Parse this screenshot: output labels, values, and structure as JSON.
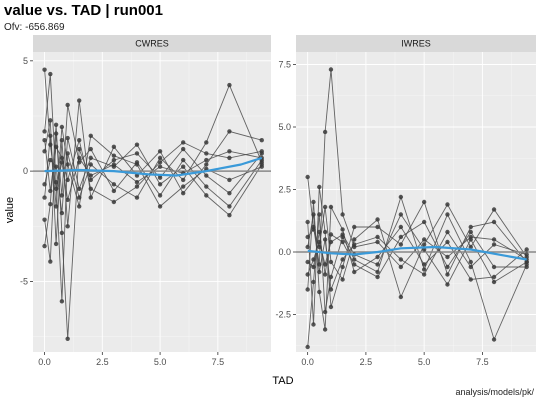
{
  "title": "value vs. TAD | run001",
  "subtitle": "Ofv: -656.869",
  "xlabel": "TAD",
  "ylabel": "value",
  "caption": "analysis/models/pk/",
  "colors": {
    "panel_bg": "#ebebeb",
    "strip_bg": "#d9d9d9",
    "grid_major": "#ffffff",
    "point": "#3a3a3a",
    "line": "#4a4a4a",
    "smooth": "#3a9ad9",
    "reference": "#888888"
  },
  "chart_data": [
    {
      "type": "line",
      "panel": "CWRES",
      "strip_label": "CWRES",
      "xlim": [
        -0.5,
        9.8
      ],
      "ylim": [
        -8.2,
        5.4
      ],
      "xticks": [
        0.0,
        2.5,
        5.0,
        7.5
      ],
      "xtick_labels": [
        "0.0",
        "2.5",
        "5.0",
        "7.5"
      ],
      "yticks": [
        -5,
        0,
        5
      ],
      "ytick_labels": [
        "-5",
        "0",
        "5"
      ],
      "reference_y": 0,
      "grid": true,
      "x": [
        0,
        0.25,
        0.5,
        0.75,
        1,
        1.5,
        2,
        3,
        4,
        5,
        6,
        7,
        8,
        9.4
      ],
      "series": [
        {
          "values": [
            4.6,
            1.2,
            -0.8,
            0.4,
            -1.3,
            0.6,
            -0.2,
            0.3,
            -0.5,
            0.2,
            -0.1,
            0.5,
            0.9,
            0.6
          ]
        },
        {
          "values": [
            -3.4,
            -1.5,
            2.1,
            -2.8,
            -7.6,
            1.0,
            -0.4,
            0.5,
            0.8,
            -0.3,
            1.0,
            -0.2,
            -1.0,
            0.8
          ]
        },
        {
          "values": [
            1.8,
            4.4,
            -0.5,
            -5.9,
            0.8,
            -1.2,
            0.3,
            -0.6,
            -1.2,
            0.6,
            -0.4,
            1.3,
            3.9,
            0.4
          ]
        },
        {
          "values": [
            -2.2,
            -4.1,
            1.7,
            -1.1,
            3.0,
            0.4,
            1.0,
            -0.9,
            0.4,
            -1.1,
            0.5,
            -0.7,
            -1.6,
            0.5
          ]
        },
        {
          "values": [
            0.9,
            2.3,
            -3.3,
            1.4,
            -2.5,
            3.2,
            -1.2,
            1.1,
            -0.2,
            0.9,
            -1.0,
            0.3,
            1.8,
            1.4
          ]
        },
        {
          "values": [
            -0.6,
            0.5,
            0.2,
            -1.9,
            1.5,
            -0.8,
            0.6,
            0.2,
            1.2,
            -0.6,
            0.2,
            -1.1,
            -2.0,
            0.3
          ]
        },
        {
          "values": [
            1.4,
            -0.9,
            1.1,
            0.6,
            -0.4,
            1.4,
            -0.8,
            -1.4,
            -0.7,
            0.4,
            1.3,
            0.8,
            0.6,
            0.9
          ]
        },
        {
          "values": [
            -1.2,
            1.6,
            -1.6,
            2.0,
            0.3,
            -1.6,
            1.6,
            0.7,
            0.3,
            -1.6,
            -0.7,
            0.1,
            -0.4,
            0.2
          ]
        }
      ],
      "smooth": [
        {
          "x": 0,
          "y": 0.0
        },
        {
          "x": 1.5,
          "y": 0.05
        },
        {
          "x": 3,
          "y": 0.0
        },
        {
          "x": 4.5,
          "y": -0.15
        },
        {
          "x": 5.7,
          "y": -0.2
        },
        {
          "x": 7,
          "y": 0.0
        },
        {
          "x": 8.5,
          "y": 0.3
        },
        {
          "x": 9.4,
          "y": 0.6
        }
      ]
    },
    {
      "type": "line",
      "panel": "IWRES",
      "strip_label": "IWRES",
      "xlim": [
        -0.5,
        9.8
      ],
      "ylim": [
        -4.0,
        8.0
      ],
      "xticks": [
        0.0,
        2.5,
        5.0,
        7.5
      ],
      "xtick_labels": [
        "0.0",
        "2.5",
        "5.0",
        "7.5"
      ],
      "yticks": [
        -2.5,
        0.0,
        2.5,
        5.0,
        7.5
      ],
      "ytick_labels": [
        "-2.5",
        "0.0",
        "2.5",
        "5.0",
        "7.5"
      ],
      "reference_y": 0,
      "grid": true,
      "x": [
        0,
        0.25,
        0.5,
        0.75,
        1,
        1.5,
        2,
        3,
        4,
        5,
        6,
        7,
        8,
        9.4
      ],
      "series": [
        {
          "values": [
            3.0,
            1.0,
            -0.5,
            4.8,
            7.3,
            1.5,
            0.2,
            0.4,
            -0.6,
            0.5,
            -0.2,
            0.6,
            0.5,
            -0.3
          ]
        },
        {
          "values": [
            -3.8,
            -1.2,
            1.5,
            -2.4,
            -1.0,
            0.6,
            -0.3,
            -0.8,
            2.2,
            -0.7,
            1.5,
            -0.4,
            -3.5,
            -0.5
          ]
        },
        {
          "values": [
            1.2,
            -2.9,
            2.6,
            0.8,
            -2.2,
            -0.6,
            1.0,
            1.0,
            0.3,
            2.0,
            -0.9,
            1.0,
            1.2,
            -0.4
          ]
        },
        {
          "values": [
            -1.5,
            2.0,
            -1.6,
            -3.1,
            1.8,
            0.9,
            -0.8,
            -0.2,
            1.0,
            -0.5,
            0.4,
            -1.1,
            -1.0,
            0.1
          ]
        },
        {
          "values": [
            0.6,
            0.9,
            0.2,
            1.8,
            -0.4,
            -1.1,
            0.5,
            1.3,
            -1.8,
            0.3,
            1.9,
            0.2,
            1.7,
            -0.2
          ]
        },
        {
          "values": [
            -0.4,
            -0.6,
            0.8,
            -0.9,
            0.7,
            0.4,
            -0.5,
            -1.0,
            0.6,
            1.2,
            -0.6,
            0.8,
            -0.6,
            -0.6
          ]
        },
        {
          "values": [
            0.2,
            1.5,
            -0.8,
            0.5,
            -1.5,
            -0.3,
            0.3,
            0.6,
            -0.3,
            -0.9,
            0.8,
            -0.6,
            0.3,
            -0.1
          ]
        },
        {
          "values": [
            -0.9,
            -0.3,
            0.4,
            -0.5,
            0.4,
            0.7,
            -0.1,
            -0.5,
            1.5,
            0.1,
            -1.3,
            0.5,
            -1.2,
            -0.4
          ]
        }
      ],
      "smooth": [
        {
          "x": 0,
          "y": 0.05
        },
        {
          "x": 1,
          "y": -0.05
        },
        {
          "x": 2,
          "y": -0.1
        },
        {
          "x": 3,
          "y": 0.0
        },
        {
          "x": 4,
          "y": 0.15
        },
        {
          "x": 5.5,
          "y": 0.2
        },
        {
          "x": 7,
          "y": 0.1
        },
        {
          "x": 8.5,
          "y": -0.15
        },
        {
          "x": 9.4,
          "y": -0.3
        }
      ]
    }
  ]
}
